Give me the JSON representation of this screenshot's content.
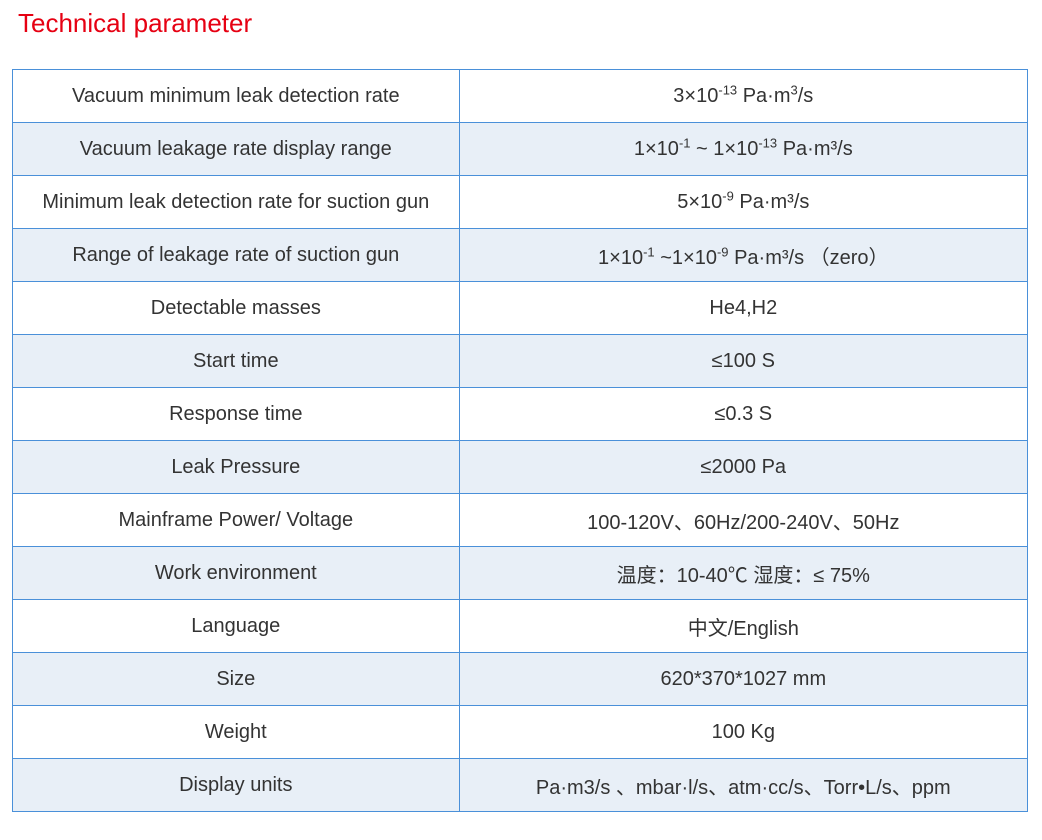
{
  "title": "Technical parameter",
  "table": {
    "border_color": "#4a90d9",
    "row_bg_even": "#e8eff7",
    "row_bg_odd": "#ffffff",
    "text_color": "#333333",
    "title_color": "#e60012",
    "font_size_body": 20,
    "font_size_title": 26,
    "col_widths_pct": [
      44,
      56
    ],
    "rows": [
      {
        "param": "Vacuum minimum leak detection rate",
        "value_html": "3×10<sup>-13</sup> Pa·m<sup>3</sup>/s"
      },
      {
        "param": "Vacuum leakage rate display range",
        "value_html": "1×10<sup>-1</sup> ~ 1×10<sup>-13</sup> Pa·m³/s"
      },
      {
        "param": "Minimum leak detection rate for suction gun",
        "value_html": "5×10<sup>-9</sup> Pa·m³/s"
      },
      {
        "param": "Range of leakage rate of suction gun",
        "value_html": "1×10<sup>-1</sup> ~1×10<sup>-9</sup> Pa·m³/s （zero）"
      },
      {
        "param": "Detectable masses",
        "value_html": "He4,H2"
      },
      {
        "param": "Start time",
        "value_html": "≤100 S"
      },
      {
        "param": "Response time",
        "value_html": "≤0.3 S"
      },
      {
        "param": "Leak Pressure",
        "value_html": "≤2000 Pa"
      },
      {
        "param": "Mainframe Power/ Voltage",
        "value_html": "100-120V、60Hz/200-240V、50Hz"
      },
      {
        "param": "Work environment",
        "value_html": "温度：10-40℃ 湿度：≤ 75%"
      },
      {
        "param": "Language",
        "value_html": "中文/English"
      },
      {
        "param": "Size",
        "value_html": "620*370*1027 mm"
      },
      {
        "param": "Weight",
        "value_html": "100 Kg"
      },
      {
        "param": "Display units",
        "value_html": "Pa·m3/s 、mbar·l/s、atm·cc/s、Torr•L/s、ppm"
      }
    ]
  }
}
